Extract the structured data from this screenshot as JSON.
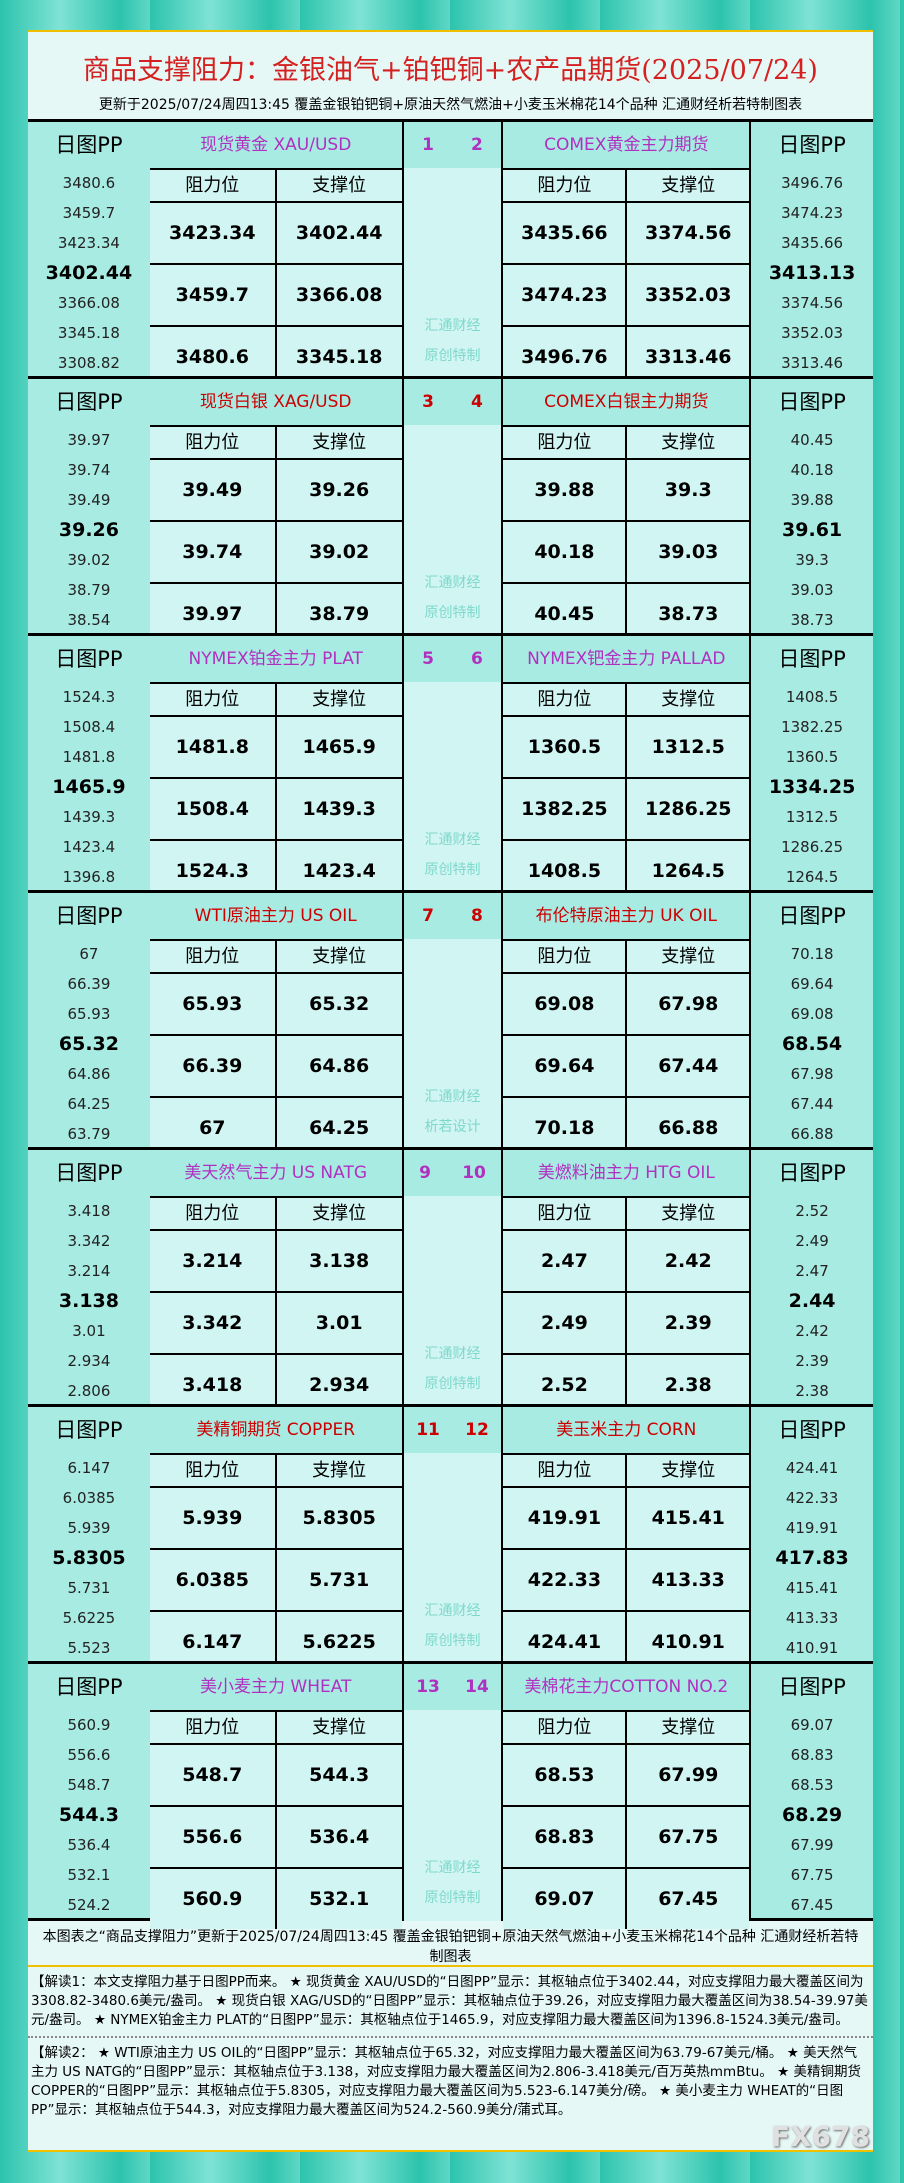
{
  "header": {
    "title": "商品支撑阻力：金银油气+铂钯铜+农产品期货(2025/07/24)",
    "subtitle": "更新于2025/07/24周四13:45 覆盖金银铂钯铜+原油天然气燃油+小麦玉米棉花14个品种 汇通财经析若特制图表"
  },
  "labels": {
    "pp": "日图PP",
    "resistance": "阻力位",
    "support": "支撑位",
    "watermark1": "汇通财经"
  },
  "colors": {
    "red": "#cc0000",
    "purple": "#b030c0",
    "title": "#d42020"
  },
  "panels": [
    {
      "nums": [
        "1",
        "2"
      ],
      "color": "purple",
      "left": "现货黄金 XAU/USD",
      "right": "COMEX黄金主力期货",
      "wm2": "原创特制",
      "lpp": [
        "3480.6",
        "3459.7",
        "3423.34",
        "3402.44",
        "3366.08",
        "3345.18",
        "3308.82"
      ],
      "lt": [
        [
          "3423.34",
          "3402.44"
        ],
        [
          "3459.7",
          "3366.08"
        ],
        [
          "3480.6",
          "3345.18"
        ]
      ],
      "rt": [
        [
          "3435.66",
          "3374.56"
        ],
        [
          "3474.23",
          "3352.03"
        ],
        [
          "3496.76",
          "3313.46"
        ]
      ],
      "rpp": [
        "3496.76",
        "3474.23",
        "3435.66",
        "3413.13",
        "3374.56",
        "3352.03",
        "3313.46"
      ]
    },
    {
      "nums": [
        "3",
        "4"
      ],
      "color": "red",
      "left": "现货白银 XAG/USD",
      "right": "COMEX白银主力期货",
      "wm2": "原创特制",
      "lpp": [
        "39.97",
        "39.74",
        "39.49",
        "39.26",
        "39.02",
        "38.79",
        "38.54"
      ],
      "lt": [
        [
          "39.49",
          "39.26"
        ],
        [
          "39.74",
          "39.02"
        ],
        [
          "39.97",
          "38.79"
        ]
      ],
      "rt": [
        [
          "39.88",
          "39.3"
        ],
        [
          "40.18",
          "39.03"
        ],
        [
          "40.45",
          "38.73"
        ]
      ],
      "rpp": [
        "40.45",
        "40.18",
        "39.88",
        "39.61",
        "39.3",
        "39.03",
        "38.73"
      ]
    },
    {
      "nums": [
        "5",
        "6"
      ],
      "color": "purple",
      "left": "NYMEX铂金主力 PLAT",
      "right": "NYMEX钯金主力 PALLAD",
      "wm2": "原创特制",
      "lpp": [
        "1524.3",
        "1508.4",
        "1481.8",
        "1465.9",
        "1439.3",
        "1423.4",
        "1396.8"
      ],
      "lt": [
        [
          "1481.8",
          "1465.9"
        ],
        [
          "1508.4",
          "1439.3"
        ],
        [
          "1524.3",
          "1423.4"
        ]
      ],
      "rt": [
        [
          "1360.5",
          "1312.5"
        ],
        [
          "1382.25",
          "1286.25"
        ],
        [
          "1408.5",
          "1264.5"
        ]
      ],
      "rpp": [
        "1408.5",
        "1382.25",
        "1360.5",
        "1334.25",
        "1312.5",
        "1286.25",
        "1264.5"
      ]
    },
    {
      "nums": [
        "7",
        "8"
      ],
      "color": "red",
      "left": "WTI原油主力 US OIL",
      "right": "布伦特原油主力 UK OIL",
      "wm2": "析若设计",
      "lpp": [
        "67",
        "66.39",
        "65.93",
        "65.32",
        "64.86",
        "64.25",
        "63.79"
      ],
      "lt": [
        [
          "65.93",
          "65.32"
        ],
        [
          "66.39",
          "64.86"
        ],
        [
          "67",
          "64.25"
        ]
      ],
      "rt": [
        [
          "69.08",
          "67.98"
        ],
        [
          "69.64",
          "67.44"
        ],
        [
          "70.18",
          "66.88"
        ]
      ],
      "rpp": [
        "70.18",
        "69.64",
        "69.08",
        "68.54",
        "67.98",
        "67.44",
        "66.88"
      ]
    },
    {
      "nums": [
        "9",
        "10"
      ],
      "color": "purple",
      "left": "美天然气主力 US NATG",
      "right": "美燃料油主力 HTG OIL",
      "wm2": "原创特制",
      "lpp": [
        "3.418",
        "3.342",
        "3.214",
        "3.138",
        "3.01",
        "2.934",
        "2.806"
      ],
      "lt": [
        [
          "3.214",
          "3.138"
        ],
        [
          "3.342",
          "3.01"
        ],
        [
          "3.418",
          "2.934"
        ]
      ],
      "rt": [
        [
          "2.47",
          "2.42"
        ],
        [
          "2.49",
          "2.39"
        ],
        [
          "2.52",
          "2.38"
        ]
      ],
      "rpp": [
        "2.52",
        "2.49",
        "2.47",
        "2.44",
        "2.42",
        "2.39",
        "2.38"
      ]
    },
    {
      "nums": [
        "11",
        "12"
      ],
      "color": "red",
      "left": "美精铜期货 COPPER",
      "right": "美玉米主力 CORN",
      "wm2": "原创特制",
      "lpp": [
        "6.147",
        "6.0385",
        "5.939",
        "5.8305",
        "5.731",
        "5.6225",
        "5.523"
      ],
      "lt": [
        [
          "5.939",
          "5.8305"
        ],
        [
          "6.0385",
          "5.731"
        ],
        [
          "6.147",
          "5.6225"
        ]
      ],
      "rt": [
        [
          "419.91",
          "415.41"
        ],
        [
          "422.33",
          "413.33"
        ],
        [
          "424.41",
          "410.91"
        ]
      ],
      "rpp": [
        "424.41",
        "422.33",
        "419.91",
        "417.83",
        "415.41",
        "413.33",
        "410.91"
      ]
    },
    {
      "nums": [
        "13",
        "14"
      ],
      "color": "purple",
      "left": "美小麦主力 WHEAT",
      "right": "美棉花主力COTTON NO.2",
      "wm2": "原创特制",
      "lpp": [
        "560.9",
        "556.6",
        "548.7",
        "544.3",
        "536.4",
        "532.1",
        "524.2"
      ],
      "lt": [
        [
          "548.7",
          "544.3"
        ],
        [
          "556.6",
          "536.4"
        ],
        [
          "560.9",
          "532.1"
        ]
      ],
      "rt": [
        [
          "68.53",
          "67.99"
        ],
        [
          "68.83",
          "67.75"
        ],
        [
          "69.07",
          "67.45"
        ]
      ],
      "rpp": [
        "69.07",
        "68.83",
        "68.53",
        "68.29",
        "67.99",
        "67.75",
        "67.45"
      ]
    }
  ],
  "footer": {
    "note": "本图表之“商品支撑阻力”更新于2025/07/24周四13:45 覆盖金银铂钯铜+原油天然气燃油+小麦玉米棉花14个品种 汇通财经析若特制图表",
    "explain1": "【解读1：本文支撑阻力基于日图PP而来。 ★ 现货黄金 XAU/USD的“日图PP”显示：其枢轴点位于3402.44，对应支撑阻力最大覆盖区间为3308.82-3480.6美元/盎司。 ★ 现货白银 XAG/USD的“日图PP”显示：其枢轴点位于39.26，对应支撑阻力最大覆盖区间为38.54-39.97美元/盎司。 ★ NYMEX铂金主力 PLAT的“日图PP”显示：其枢轴点位于1465.9，对应支撑阻力最大覆盖区间为1396.8-1524.3美元/盎司。",
    "explain2": "【解读2： ★ WTI原油主力 US OIL的“日图PP”显示：其枢轴点位于65.32，对应支撑阻力最大覆盖区间为63.79-67美元/桶。 ★ 美天然气主力 US NATG的“日图PP”显示：其枢轴点位于3.138，对应支撑阻力最大覆盖区间为2.806-3.418美元/百万英热mmBtu。 ★ 美精铜期货 COPPER的“日图PP”显示：其枢轴点位于5.8305，对应支撑阻力最大覆盖区间为5.523-6.147美分/磅。 ★ 美小麦主力 WHEAT的“日图PP”显示：其枢轴点位于544.3，对应支撑阻力最大覆盖区间为524.2-560.9美分/蒲式耳。",
    "logo": "FX678"
  }
}
